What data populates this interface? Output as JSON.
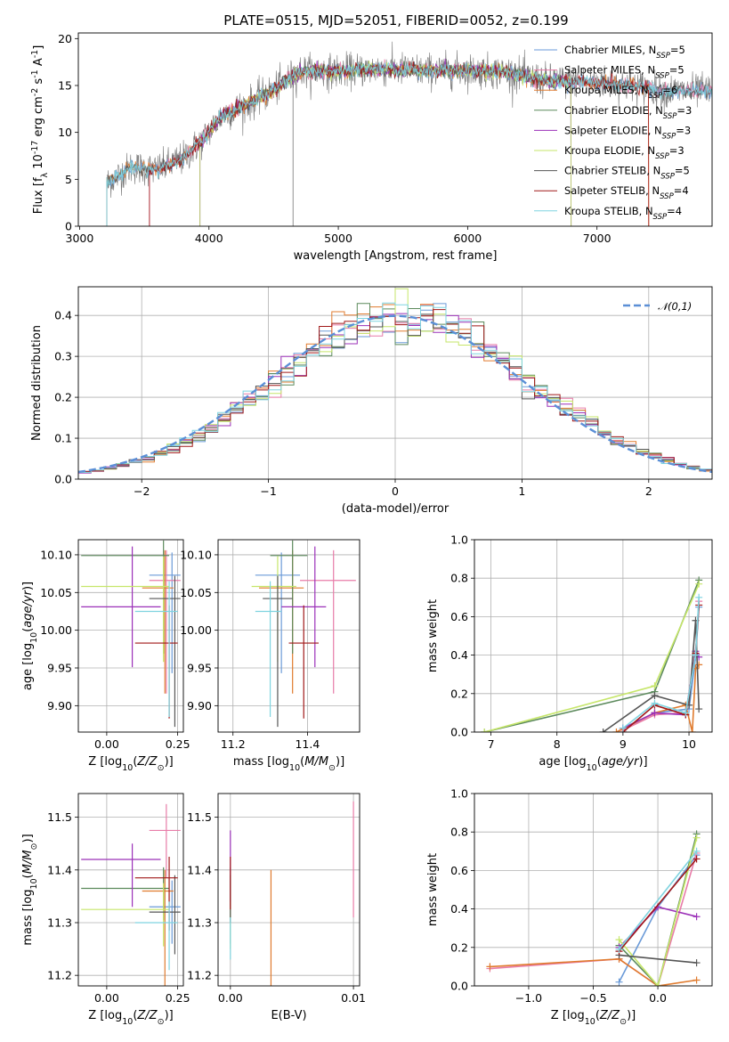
{
  "title": "PLATE=0515, MJD=52051, FIBERID=0052, z=0.199",
  "models": [
    {
      "name": "Chabrier MILES",
      "nssp": "5",
      "color": "#6a9ad8"
    },
    {
      "name": "Salpeter MILES",
      "nssp": "5",
      "color": "#e87ca8"
    },
    {
      "name": "Kroupa MILES",
      "nssp": "6",
      "color": "#e07b2e"
    },
    {
      "name": "Chabrier ELODIE",
      "nssp": "3",
      "color": "#5c8a5c"
    },
    {
      "name": "Salpeter ELODIE",
      "nssp": "3",
      "color": "#9b30b8"
    },
    {
      "name": "Kroupa ELODIE",
      "nssp": "3",
      "color": "#c6e66a"
    },
    {
      "name": "Chabrier STELIB",
      "nssp": "5",
      "color": "#555555"
    },
    {
      "name": "Salpeter STELIB",
      "nssp": "4",
      "color": "#a01818"
    },
    {
      "name": "Kroupa STELIB",
      "nssp": "4",
      "color": "#7fd4e0"
    }
  ],
  "legend_suffix": "N",
  "legend_sub": "SSP",
  "chart_data": [
    {
      "type": "line",
      "id": "spectrum",
      "xlabel": "wavelength [Angstrom, rest frame]",
      "ylabel": "Flux [f_λ 10^-17 erg cm^-2 s^-1 A^-1]",
      "xlim": [
        2990,
        7890
      ],
      "ylim": [
        0,
        20.6
      ],
      "xticks": [
        3000,
        4000,
        5000,
        6000,
        7000
      ],
      "yticks": [
        0,
        5,
        10,
        15,
        20
      ],
      "observed_color": "#777777",
      "continuum_knots": [
        [
          3210,
          4.6
        ],
        [
          3400,
          6.3
        ],
        [
          3600,
          6.0
        ],
        [
          3800,
          7.2
        ],
        [
          3950,
          9.2
        ],
        [
          4100,
          11.8
        ],
        [
          4300,
          13.0
        ],
        [
          4500,
          14.5
        ],
        [
          4700,
          16.5
        ],
        [
          5000,
          16.5
        ],
        [
          5300,
          16.8
        ],
        [
          5600,
          16.6
        ],
        [
          6000,
          16.6
        ],
        [
          6300,
          16.4
        ],
        [
          6600,
          15.5
        ],
        [
          7000,
          15.3
        ],
        [
          7300,
          15.0
        ],
        [
          7500,
          14.4
        ]
      ],
      "model_starts": [
        3210,
        3540,
        3210,
        3930,
        3930,
        3930,
        3210,
        3540,
        3210
      ],
      "model_ends": [
        7890,
        7890,
        7400,
        6800,
        6800,
        6800,
        7890,
        7400,
        7890
      ],
      "grid": false
    },
    {
      "type": "step",
      "id": "residuals",
      "xlabel": "(data-model)/error",
      "ylabel": "Normed distribution",
      "xlim": [
        -2.5,
        2.5
      ],
      "ylim": [
        0,
        0.47
      ],
      "xticks": [
        -2,
        -1,
        0,
        1,
        2
      ],
      "yticks": [
        0,
        0.1,
        0.2,
        0.3,
        0.4
      ],
      "bin_width": 0.1,
      "reference": {
        "name": "𝒩(0,1)",
        "color": "#5b8fd6",
        "mu": 0,
        "sigma": 1
      },
      "legend_position": "upper right",
      "grid": true
    },
    {
      "type": "errorbar",
      "id": "age-vs-Z",
      "xlabel": "Z [log10(Z/Z☉)]",
      "ylabel": "age [log10(age/yr)]",
      "xlim": [
        -0.1,
        0.27
      ],
      "ylim": [
        9.865,
        10.12
      ],
      "xticks": [
        0.0,
        0.25
      ],
      "yticks": [
        9.9,
        9.95,
        10.0,
        10.05,
        10.1
      ],
      "points": [
        {
          "x": 0.23,
          "xerr": [
            0.08,
            0.03
          ],
          "y": 10.073,
          "yerr": [
            0.13,
            0.03
          ]
        },
        {
          "x": 0.21,
          "xerr": [
            0.06,
            0.05
          ],
          "y": 10.066,
          "yerr": [
            0.15,
            0.04
          ]
        },
        {
          "x": 0.205,
          "xerr": [
            0.08,
            0.03
          ],
          "y": 10.056,
          "yerr": [
            0.14,
            0.05
          ]
        },
        {
          "x": 0.2,
          "xerr": [
            0.29,
            0.02
          ],
          "y": 10.099,
          "yerr": [
            0.13,
            0.02
          ]
        },
        {
          "x": 0.09,
          "xerr": [
            0.18,
            0.1
          ],
          "y": 10.031,
          "yerr": [
            0.08,
            0.08
          ]
        },
        {
          "x": 0.2,
          "xerr": [
            0.29,
            0.02
          ],
          "y": 10.058,
          "yerr": [
            0.1,
            0.04
          ]
        },
        {
          "x": 0.24,
          "xerr": [
            0.09,
            0.02
          ],
          "y": 10.042,
          "yerr": [
            0.17,
            0.03
          ]
        },
        {
          "x": 0.22,
          "xerr": [
            0.12,
            0.03
          ],
          "y": 9.983,
          "yerr": [
            0.1,
            0.05
          ]
        },
        {
          "x": 0.22,
          "xerr": [
            0.12,
            0.03
          ],
          "y": 10.025,
          "yerr": [
            0.14,
            0.04
          ]
        }
      ],
      "grid": true
    },
    {
      "type": "errorbar",
      "id": "age-vs-mass",
      "xlabel": "mass [log10(M/M☉)]",
      "ylabel": "",
      "xlim": [
        11.16,
        11.54
      ],
      "ylim": [
        9.865,
        10.12
      ],
      "xticks": [
        11.2,
        11.4
      ],
      "yticks": [
        9.9,
        9.95,
        10.0,
        10.05,
        10.1
      ],
      "points": [
        {
          "x": 11.33,
          "xerr": [
            0.07,
            0.05
          ],
          "y": 10.073,
          "yerr": [
            0.13,
            0.03
          ]
        },
        {
          "x": 11.47,
          "xerr": [
            0.09,
            0.06
          ],
          "y": 10.066,
          "yerr": [
            0.15,
            0.04
          ]
        },
        {
          "x": 11.36,
          "xerr": [
            0.09,
            0.03
          ],
          "y": 10.056,
          "yerr": [
            0.14,
            0.05
          ]
        },
        {
          "x": 11.36,
          "xerr": [
            0.06,
            0.04
          ],
          "y": 10.099,
          "yerr": [
            0.13,
            0.02
          ]
        },
        {
          "x": 11.42,
          "xerr": [
            0.09,
            0.03
          ],
          "y": 10.031,
          "yerr": [
            0.08,
            0.08
          ]
        },
        {
          "x": 11.32,
          "xerr": [
            0.07,
            0.05
          ],
          "y": 10.058,
          "yerr": [
            0.1,
            0.04
          ]
        },
        {
          "x": 11.32,
          "xerr": [
            0.04,
            0.04
          ],
          "y": 10.042,
          "yerr": [
            0.17,
            0.03
          ]
        },
        {
          "x": 11.39,
          "xerr": [
            0.04,
            0.04
          ],
          "y": 9.983,
          "yerr": [
            0.1,
            0.05
          ]
        },
        {
          "x": 11.3,
          "xerr": [
            0.04,
            0.03
          ],
          "y": 10.025,
          "yerr": [
            0.14,
            0.04
          ]
        }
      ],
      "grid": true
    },
    {
      "type": "line",
      "id": "massweight-vs-age",
      "xlabel": "age [log10(age/yr)]",
      "ylabel": "mass weight",
      "xlim": [
        6.75,
        10.35
      ],
      "ylim": [
        0,
        1.0
      ],
      "xticks": [
        7,
        8,
        9,
        10
      ],
      "yticks": [
        0.0,
        0.2,
        0.4,
        0.6,
        0.8,
        1.0
      ],
      "series": [
        {
          "x": [
            9.0,
            9.48,
            10.0,
            10.1,
            10.15
          ],
          "y": [
            0.02,
            0.1,
            0.12,
            0.39,
            0.65
          ]
        },
        {
          "x": [
            9.0,
            9.48,
            9.95,
            10.1,
            10.15
          ],
          "y": [
            0.01,
            0.09,
            0.1,
            0.41,
            0.68
          ]
        },
        {
          "x": [
            8.9,
            9.48,
            9.95,
            10.05,
            10.1,
            10.15
          ],
          "y": [
            0.0,
            0.1,
            0.14,
            0.0,
            0.33,
            0.35
          ]
        },
        {
          "x": [
            6.9,
            9.48,
            10.15
          ],
          "y": [
            0.0,
            0.21,
            0.79
          ]
        },
        {
          "x": [
            9.0,
            9.48,
            9.95,
            10.1,
            10.15
          ],
          "y": [
            0.02,
            0.1,
            0.09,
            0.42,
            0.39
          ]
        },
        {
          "x": [
            6.9,
            9.48,
            10.15
          ],
          "y": [
            0.0,
            0.24,
            0.77
          ]
        },
        {
          "x": [
            8.7,
            9.48,
            10.0,
            10.1,
            10.15
          ],
          "y": [
            0.0,
            0.19,
            0.14,
            0.58,
            0.12
          ]
        },
        {
          "x": [
            9.0,
            9.48,
            9.95,
            10.1,
            10.15
          ],
          "y": [
            0.0,
            0.14,
            0.09,
            0.41,
            0.66
          ]
        },
        {
          "x": [
            9.0,
            9.48,
            9.95,
            10.1,
            10.15
          ],
          "y": [
            0.02,
            0.15,
            0.1,
            0.4,
            0.7
          ]
        }
      ],
      "grid": true
    },
    {
      "type": "errorbar",
      "id": "mass-vs-Z",
      "xlabel": "Z [log10(Z/Z☉)]",
      "ylabel": "mass [log10(M/M☉)]",
      "xlim": [
        -0.1,
        0.27
      ],
      "ylim": [
        11.18,
        11.545
      ],
      "xticks": [
        0.0,
        0.25
      ],
      "yticks": [
        11.2,
        11.3,
        11.4,
        11.5
      ],
      "points": [
        {
          "x": 0.23,
          "xerr": [
            0.08,
            0.03
          ],
          "y": 11.33,
          "yerr": [
            0.07,
            0.05
          ]
        },
        {
          "x": 0.21,
          "xerr": [
            0.06,
            0.05
          ],
          "y": 11.475,
          "yerr": [
            0.09,
            0.05
          ]
        },
        {
          "x": 0.205,
          "xerr": [
            0.08,
            0.03
          ],
          "y": 11.36,
          "yerr": [
            0.18,
            0.04
          ]
        },
        {
          "x": 0.2,
          "xerr": [
            0.29,
            0.02
          ],
          "y": 11.365,
          "yerr": [
            0.06,
            0.04
          ]
        },
        {
          "x": 0.09,
          "xerr": [
            0.18,
            0.1
          ],
          "y": 11.42,
          "yerr": [
            0.09,
            0.03
          ]
        },
        {
          "x": 0.2,
          "xerr": [
            0.29,
            0.02
          ],
          "y": 11.325,
          "yerr": [
            0.07,
            0.05
          ]
        },
        {
          "x": 0.24,
          "xerr": [
            0.09,
            0.02
          ],
          "y": 11.32,
          "yerr": [
            0.08,
            0.07
          ]
        },
        {
          "x": 0.22,
          "xerr": [
            0.12,
            0.03
          ],
          "y": 11.385,
          "yerr": [
            0.1,
            0.04
          ]
        },
        {
          "x": 0.22,
          "xerr": [
            0.12,
            0.03
          ],
          "y": 11.3,
          "yerr": [
            0.09,
            0.04
          ]
        }
      ],
      "grid": true
    },
    {
      "type": "errorbar",
      "id": "mass-vs-ebv",
      "xlabel": "E(B-V)",
      "ylabel": "",
      "xlim": [
        -0.001,
        0.0105
      ],
      "ylim": [
        11.18,
        11.545
      ],
      "xticks": [
        0.0,
        0.01
      ],
      "yticks": [
        11.2,
        11.3,
        11.4,
        11.5
      ],
      "points": [
        {
          "x": 0.0,
          "y": 11.33,
          "yerr": [
            0.07,
            0.05
          ]
        },
        {
          "x": 0.01,
          "y": 11.4,
          "yerr": [
            0.09,
            0.13
          ]
        },
        {
          "x": 0.0033,
          "y": 11.3,
          "yerr": [
            0.12,
            0.1
          ]
        },
        {
          "x": 0.0,
          "y": 11.365,
          "yerr": [
            0.06,
            0.04
          ]
        },
        {
          "x": 0.0,
          "y": 11.42,
          "yerr": [
            0.09,
            0.055
          ]
        },
        {
          "x": 0.0,
          "y": 11.3,
          "yerr": [
            0.05,
            0.04
          ]
        },
        {
          "x": 0.0,
          "y": 11.35,
          "yerr": [
            0.05,
            0.04
          ]
        },
        {
          "x": 0.0,
          "y": 11.385,
          "yerr": [
            0.06,
            0.04
          ]
        },
        {
          "x": 0.0,
          "y": 11.27,
          "yerr": [
            0.04,
            0.04
          ]
        }
      ],
      "grid": true
    },
    {
      "type": "line",
      "id": "massweight-vs-Z",
      "xlabel": "Z [log10(Z/Z☉)]",
      "ylabel": "mass weight",
      "xlim": [
        -1.42,
        0.42
      ],
      "ylim": [
        0,
        1.0
      ],
      "xticks": [
        -1.0,
        -0.5,
        0.0
      ],
      "yticks": [
        0.0,
        0.2,
        0.4,
        0.6,
        0.8,
        1.0
      ],
      "series": [
        {
          "x": [
            -0.3,
            0.0,
            0.3
          ],
          "y": [
            0.02,
            0.41,
            0.68
          ]
        },
        {
          "x": [
            -1.3,
            -0.3,
            0.0,
            0.3
          ],
          "y": [
            0.09,
            0.14,
            0.0,
            0.69
          ]
        },
        {
          "x": [
            -1.3,
            -0.3,
            0.0,
            0.3
          ],
          "y": [
            0.1,
            0.14,
            0.0,
            0.03
          ]
        },
        {
          "x": [
            -0.3,
            0.0,
            0.3
          ],
          "y": [
            0.21,
            0.0,
            0.79
          ]
        },
        {
          "x": [
            -0.3,
            0.0,
            0.3
          ],
          "y": [
            0.2,
            0.41,
            0.36
          ]
        },
        {
          "x": [
            -0.3,
            0.0,
            0.3
          ],
          "y": [
            0.24,
            0.0,
            0.77
          ]
        },
        {
          "x": [
            -0.3,
            0.3
          ],
          "y": [
            0.16,
            0.12
          ]
        },
        {
          "x": [
            -0.3,
            0.3
          ],
          "y": [
            0.18,
            0.66
          ]
        },
        {
          "x": [
            -0.3,
            0.3
          ],
          "y": [
            0.19,
            0.7
          ]
        }
      ],
      "grid": true
    }
  ]
}
